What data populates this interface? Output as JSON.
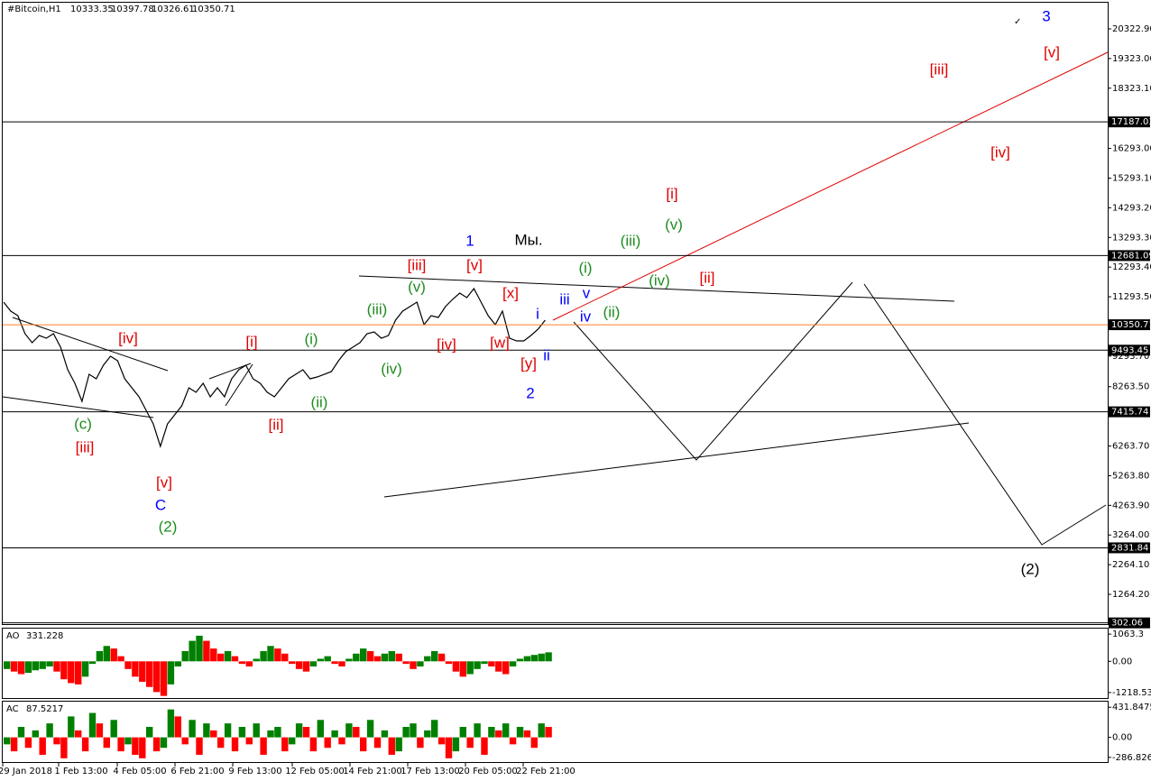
{
  "chart_data": [
    {
      "type": "line",
      "symbol": "#Bitcoin,H1",
      "ohlc": [
        10333.35,
        10397.78,
        10326.61,
        10350.71
      ],
      "color": "#000000",
      "values": [
        11112,
        10809,
        10657,
        10049,
        9745,
        9988,
        9897,
        10049,
        9593,
        8833,
        8377,
        7769,
        8681,
        8529,
        8985,
        9289,
        9137,
        8529,
        8225,
        7921,
        7465,
        7009,
        6250,
        7009,
        7314,
        7617,
        8225,
        8073,
        8377,
        7921,
        8225,
        7921,
        8529,
        8833,
        8985,
        8529,
        8377,
        8073,
        7921,
        8225,
        8529,
        8681,
        8833,
        8529,
        8590,
        8681,
        8773,
        9137,
        9441,
        9593,
        9745,
        10049,
        10110,
        9897,
        9988,
        10505,
        10809,
        10961,
        11112,
        10353,
        10657,
        10596,
        10961,
        11204,
        11417,
        11265,
        11569,
        11112,
        10657,
        10353,
        10809,
        9897,
        9806,
        9806,
        9988,
        10201,
        10505
      ],
      "ylim": [
        262,
        21204
      ],
      "yticks": [
        {
          "value": 20322.9,
          "label": "20322.90"
        },
        {
          "value": 19323,
          "label": "19323.00"
        },
        {
          "value": 18323.1,
          "label": "18323.10"
        },
        {
          "value": 16293,
          "label": "16293.00"
        },
        {
          "value": 15293.1,
          "label": "15293.10"
        },
        {
          "value": 14293.2,
          "label": "14293.20"
        },
        {
          "value": 13293.3,
          "label": "13293.30"
        },
        {
          "value": 12293.4,
          "label": "12293.40"
        },
        {
          "value": 11293.5,
          "label": "11293.50"
        },
        {
          "value": 9293.7,
          "label": "9293.70"
        },
        {
          "value": 8263.5,
          "label": "8263.50"
        },
        {
          "value": 6263.7,
          "label": "6263.70"
        },
        {
          "value": 5263.8,
          "label": "5263.80"
        },
        {
          "value": 4263.9,
          "label": "4263.90"
        },
        {
          "value": 3264,
          "label": "3264.00"
        },
        {
          "value": 2264.1,
          "label": "2264.10"
        },
        {
          "value": 1264.2,
          "label": "1264.20"
        }
      ],
      "levels": [
        {
          "value": 17187.03,
          "color": "#000000"
        },
        {
          "value": 12681.09,
          "color": "#000000"
        },
        {
          "value": 10350.71,
          "color": "#ff7f27"
        },
        {
          "value": 9493.45,
          "color": "#000000"
        },
        {
          "value": 7415.74,
          "color": "#000000"
        },
        {
          "value": 2831.84,
          "color": "#000000"
        },
        {
          "value": 302.06,
          "color": "#000000"
        }
      ],
      "annotations": [
        {
          "text": "[iv]",
          "color": "#e00000"
        },
        {
          "text": "(c)",
          "color": "#1e8c1e"
        },
        {
          "text": "[iii]",
          "color": "#e00000"
        },
        {
          "text": "[v]",
          "color": "#e00000"
        },
        {
          "text": "C",
          "color": "#0000ff"
        },
        {
          "text": "(2)",
          "color": "#1e8c1e"
        },
        {
          "text": "[i]",
          "color": "#e00000"
        },
        {
          "text": "(i)",
          "color": "#1e8c1e"
        },
        {
          "text": "[ii]",
          "color": "#e00000"
        },
        {
          "text": "(ii)",
          "color": "#1e8c1e"
        },
        {
          "text": "(iii)",
          "color": "#1e8c1e"
        },
        {
          "text": "(iv)",
          "color": "#1e8c1e"
        },
        {
          "text": "(v)",
          "color": "#1e8c1e"
        },
        {
          "text": "[iii]",
          "color": "#e00000"
        },
        {
          "text": "[iv]",
          "color": "#e00000"
        },
        {
          "text": "[v]",
          "color": "#e00000"
        },
        {
          "text": "1",
          "color": "#0000ff"
        },
        {
          "text": "Мы.",
          "color": "#000000"
        },
        {
          "text": "[x]",
          "color": "#e00000"
        },
        {
          "text": "[w]",
          "color": "#e00000"
        },
        {
          "text": "[y]",
          "color": "#e00000"
        },
        {
          "text": "2",
          "color": "#0000ff"
        },
        {
          "text": "i",
          "color": "#0000ff"
        },
        {
          "text": "ii",
          "color": "#0000ff"
        },
        {
          "text": "iii",
          "color": "#0000ff"
        },
        {
          "text": "iv",
          "color": "#0000ff"
        },
        {
          "text": "v",
          "color": "#0000ff"
        },
        {
          "text": "(i)",
          "color": "#1e8c1e"
        },
        {
          "text": "(ii)",
          "color": "#1e8c1e"
        },
        {
          "text": "(iii)",
          "color": "#1e8c1e"
        },
        {
          "text": "(iv)",
          "color": "#1e8c1e"
        },
        {
          "text": "(v)",
          "color": "#1e8c1e"
        },
        {
          "text": "[i]",
          "color": "#e00000"
        },
        {
          "text": "[ii]",
          "color": "#e00000"
        },
        {
          "text": "[iii]",
          "color": "#e00000"
        },
        {
          "text": "[iv]",
          "color": "#e00000"
        },
        {
          "text": "[v]",
          "color": "#e00000"
        },
        {
          "text": "3",
          "color": "#0000ff"
        },
        {
          "text": "(2)",
          "color": "#000000"
        }
      ]
    },
    {
      "type": "bar",
      "name": "AO",
      "current": 331.228,
      "up_color": "#008000",
      "down_color": "#ff0000",
      "values": [
        -300,
        -400,
        -500,
        -450,
        -350,
        -300,
        -200,
        -400,
        -700,
        -850,
        -900,
        -600,
        -100,
        400,
        600,
        500,
        200,
        -300,
        -600,
        -800,
        -1000,
        -1200,
        -1350,
        -900,
        -200,
        400,
        800,
        1000,
        800,
        500,
        300,
        400,
        200,
        -100,
        -200,
        100,
        400,
        600,
        500,
        300,
        -100,
        -300,
        -400,
        -200,
        100,
        200,
        -100,
        -200,
        100,
        300,
        500,
        400,
        200,
        300,
        400,
        300,
        -100,
        -300,
        -200,
        200,
        400,
        300,
        -100,
        -400,
        -600,
        -500,
        -300,
        -100,
        -200,
        -400,
        -500,
        -200,
        100,
        200,
        250,
        300,
        350
      ],
      "ylim": [
        -1433,
        1278
      ],
      "yticks": [
        1063.3,
        {
          "value": 0,
          "label": "0.00"
        },
        -1218.534
      ]
    },
    {
      "type": "bar",
      "name": "AC",
      "current": 87.5217,
      "up_color": "#008000",
      "down_color": "#ff0000",
      "values": [
        -100,
        -200,
        150,
        -150,
        100,
        -250,
        200,
        -100,
        -300,
        300,
        100,
        -200,
        350,
        200,
        -150,
        250,
        -200,
        -100,
        -250,
        -300,
        150,
        -200,
        -150,
        400,
        300,
        -100,
        250,
        -250,
        200,
        100,
        -150,
        200,
        -200,
        150,
        -100,
        200,
        -250,
        100,
        150,
        -200,
        -100,
        200,
        150,
        -200,
        250,
        -150,
        100,
        -100,
        200,
        150,
        -200,
        250,
        -150,
        100,
        -250,
        -200,
        150,
        200,
        -150,
        100,
        250,
        -100,
        -300,
        -200,
        150,
        -150,
        200,
        -250,
        150,
        100,
        200,
        -100,
        150,
        100,
        -150,
        200,
        150
      ],
      "ylim": [
        -367,
        512
      ],
      "yticks": [
        431.8475,
        {
          "value": 0,
          "label": "0.00"
        },
        -286.8265
      ],
      "xticks": [
        "29 Jan 2018",
        "1 Feb 13:00",
        "4 Feb 05:00",
        "6 Feb 21:00",
        "9 Feb 13:00",
        "12 Feb 05:00",
        "14 Feb 21:00",
        "17 Feb 13:00",
        "20 Feb 05:00",
        "22 Feb 21:00"
      ]
    }
  ]
}
